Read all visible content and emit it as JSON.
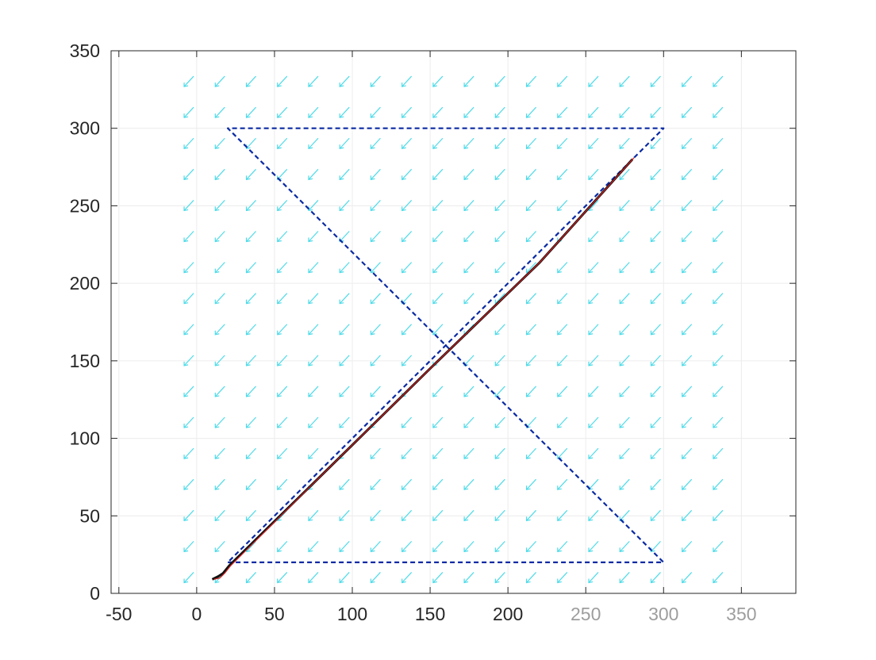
{
  "chart_data": {
    "type": "line",
    "title": "",
    "xlabel": "",
    "ylabel": "",
    "xlim": [
      -55,
      385
    ],
    "ylim": [
      0,
      350
    ],
    "xticks": [
      -50,
      0,
      50,
      100,
      150,
      200,
      250,
      300,
      350
    ],
    "yticks": [
      0,
      50,
      100,
      150,
      200,
      250,
      300,
      350
    ],
    "grid": true,
    "box": true,
    "quiver": {
      "x_range": [
        -5,
        335
      ],
      "y_range": [
        10,
        340
      ],
      "x_step": 20,
      "y_step": 20,
      "direction": "down-left",
      "color": "#4ddbe8"
    },
    "series": [
      {
        "style": "dashed",
        "color": "#0a2aa3",
        "x": [
          20,
          300,
          20,
          300,
          20,
          20
        ],
        "y": [
          20,
          20,
          300,
          300,
          20,
          20
        ]
      },
      {
        "style": "solid",
        "color": "#111111",
        "x": [
          10,
          14,
          17,
          21,
          80,
          150,
          220,
          280
        ],
        "y": [
          9,
          11,
          13,
          18,
          76,
          145,
          213,
          280
        ]
      },
      {
        "style": "solid",
        "color": "#d42020",
        "x": [
          11,
          15,
          18,
          22,
          80,
          150,
          220,
          281
        ],
        "y": [
          9,
          10,
          13,
          18,
          76,
          145,
          213,
          281
        ]
      }
    ]
  }
}
